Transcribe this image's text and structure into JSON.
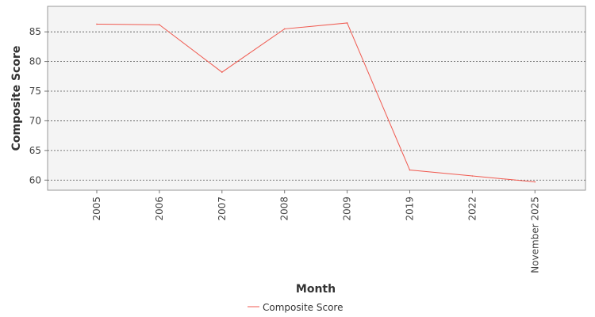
{
  "chart_data": {
    "type": "line",
    "categories": [
      "2005",
      "2006",
      "2007",
      "2008",
      "2009",
      "2019",
      "2022",
      "November 2025"
    ],
    "series": [
      {
        "name": "Composite Score",
        "values": [
          86.3,
          86.2,
          78.2,
          85.5,
          86.5,
          61.7,
          60.7,
          59.7
        ],
        "color": "#f05a50"
      }
    ],
    "xlabel": "Month",
    "ylabel": "Composite Score",
    "ylim": [
      58.3,
      89.3
    ],
    "yticks": [
      60,
      65,
      70,
      75,
      80,
      85
    ],
    "grid": true,
    "legend": "bottom-center",
    "colors": {
      "plot_background": "#f4f4f4",
      "grid": "#555555",
      "frame": "#999999"
    }
  }
}
